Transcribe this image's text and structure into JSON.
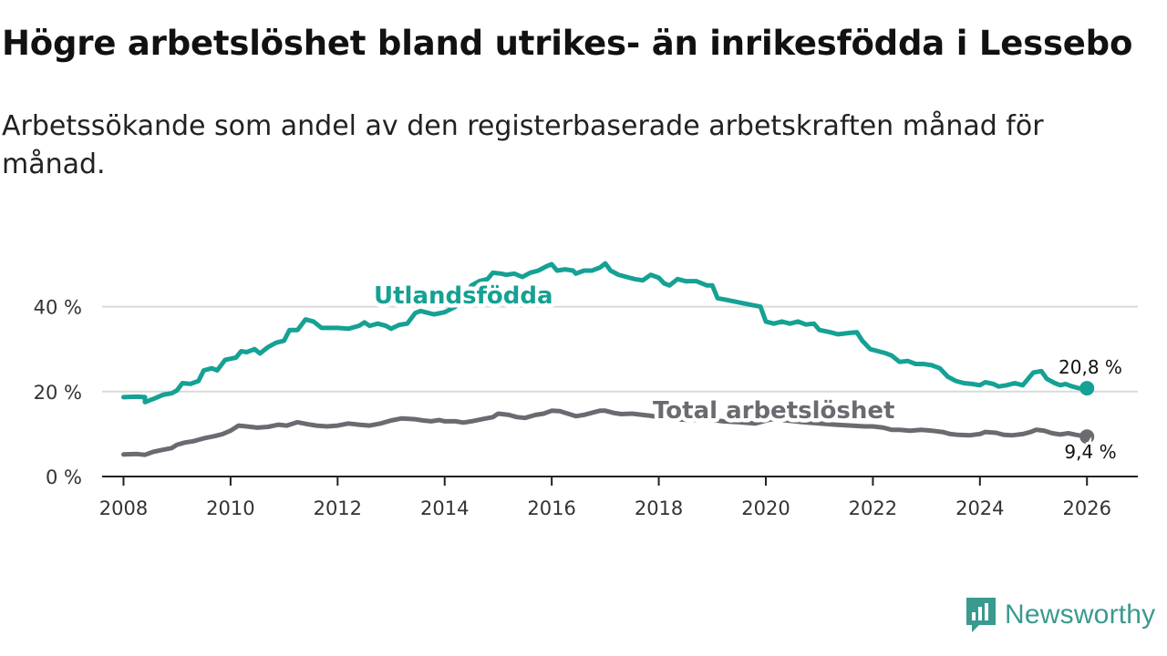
{
  "title": "Högre arbetslöshet bland utrikes- än inrikesfödda i Lessebo",
  "subtitle": "Arbetssökande som andel av den registerbaserade arbetskraften månad för månad.",
  "brand": {
    "name": "Newsworthy",
    "color": "#3a9a8f"
  },
  "chart_data": {
    "type": "line",
    "title": "Högre arbetslöshet bland utrikes- än inrikesfödda i Lessebo",
    "subtitle": "Arbetssökande som andel av den registerbaserade arbetskraften månad för månad.",
    "xlabel": "",
    "ylabel": "",
    "xlim": [
      2007.6,
      2026.95
    ],
    "ylim": [
      0,
      50
    ],
    "x_ticks": [
      {
        "value": 2008,
        "label": "2008"
      },
      {
        "value": 2010,
        "label": "2010"
      },
      {
        "value": 2012,
        "label": "2012"
      },
      {
        "value": 2014,
        "label": "2014"
      },
      {
        "value": 2016,
        "label": "2016"
      },
      {
        "value": 2018,
        "label": "2018"
      },
      {
        "value": 2020,
        "label": "2020"
      },
      {
        "value": 2022,
        "label": "2022"
      },
      {
        "value": 2024,
        "label": "2024"
      },
      {
        "value": 2026,
        "label": "2026"
      }
    ],
    "y_ticks": [
      {
        "value": 0,
        "label": "0 %"
      },
      {
        "value": 20,
        "label": "20 %"
      },
      {
        "value": 40,
        "label": "40 %"
      }
    ],
    "grid": true,
    "series": [
      {
        "name": "Utlandsfödda",
        "color": "#15a194",
        "end_label": "20,8 %",
        "points": [
          [
            2008.0,
            18.7
          ],
          [
            2008.25,
            18.8
          ],
          [
            2008.4,
            18.7
          ],
          [
            2008.4,
            17.5
          ],
          [
            2008.6,
            18.5
          ],
          [
            2008.75,
            19.3
          ],
          [
            2008.9,
            19.6
          ],
          [
            2009.0,
            20.3
          ],
          [
            2009.1,
            22.0
          ],
          [
            2009.25,
            21.8
          ],
          [
            2009.4,
            22.5
          ],
          [
            2009.5,
            25.0
          ],
          [
            2009.65,
            25.5
          ],
          [
            2009.75,
            25.0
          ],
          [
            2009.9,
            27.5
          ],
          [
            2010.1,
            28.0
          ],
          [
            2010.2,
            29.5
          ],
          [
            2010.3,
            29.3
          ],
          [
            2010.45,
            30.0
          ],
          [
            2010.55,
            29.0
          ],
          [
            2010.7,
            30.5
          ],
          [
            2010.85,
            31.5
          ],
          [
            2011.0,
            32.0
          ],
          [
            2011.1,
            34.5
          ],
          [
            2011.25,
            34.5
          ],
          [
            2011.4,
            37.0
          ],
          [
            2011.55,
            36.5
          ],
          [
            2011.7,
            35.0
          ],
          [
            2011.9,
            35.0
          ],
          [
            2012.0,
            35.0
          ],
          [
            2012.2,
            34.8
          ],
          [
            2012.4,
            35.5
          ],
          [
            2012.5,
            36.3
          ],
          [
            2012.6,
            35.5
          ],
          [
            2012.75,
            36.0
          ],
          [
            2012.9,
            35.5
          ],
          [
            2013.0,
            34.8
          ],
          [
            2013.15,
            35.7
          ],
          [
            2013.3,
            36.0
          ],
          [
            2013.45,
            38.5
          ],
          [
            2013.55,
            39.0
          ],
          [
            2013.7,
            38.5
          ],
          [
            2013.8,
            38.2
          ],
          [
            2014.0,
            38.7
          ],
          [
            2014.2,
            40.0
          ],
          [
            2014.35,
            42.0
          ],
          [
            2014.5,
            45.0
          ],
          [
            2014.65,
            46.0
          ],
          [
            2014.8,
            46.5
          ],
          [
            2014.9,
            48.0
          ],
          [
            2015.05,
            47.8
          ],
          [
            2015.15,
            47.5
          ],
          [
            2015.3,
            47.8
          ],
          [
            2015.45,
            47.0
          ],
          [
            2015.6,
            48.0
          ],
          [
            2015.75,
            48.5
          ],
          [
            2015.9,
            49.5
          ],
          [
            2016.0,
            50.0
          ],
          [
            2016.1,
            48.5
          ],
          [
            2016.25,
            48.8
          ],
          [
            2016.4,
            48.5
          ],
          [
            2016.45,
            47.8
          ],
          [
            2016.6,
            48.5
          ],
          [
            2016.75,
            48.5
          ],
          [
            2016.9,
            49.2
          ],
          [
            2017.0,
            50.2
          ],
          [
            2017.1,
            48.5
          ],
          [
            2017.25,
            47.5
          ],
          [
            2017.4,
            47.0
          ],
          [
            2017.55,
            46.5
          ],
          [
            2017.7,
            46.2
          ],
          [
            2017.85,
            47.5
          ],
          [
            2018.0,
            46.8
          ],
          [
            2018.1,
            45.5
          ],
          [
            2018.2,
            45.0
          ],
          [
            2018.35,
            46.5
          ],
          [
            2018.5,
            46.0
          ],
          [
            2018.7,
            46.0
          ],
          [
            2018.9,
            45.0
          ],
          [
            2019.0,
            45.0
          ],
          [
            2019.1,
            42.0
          ],
          [
            2019.3,
            41.5
          ],
          [
            2019.5,
            41.0
          ],
          [
            2019.7,
            40.5
          ],
          [
            2019.9,
            40.0
          ],
          [
            2020.0,
            36.5
          ],
          [
            2020.15,
            36.0
          ],
          [
            2020.3,
            36.5
          ],
          [
            2020.45,
            36.0
          ],
          [
            2020.6,
            36.5
          ],
          [
            2020.75,
            35.8
          ],
          [
            2020.9,
            36.0
          ],
          [
            2021.0,
            34.5
          ],
          [
            2021.2,
            34.0
          ],
          [
            2021.35,
            33.5
          ],
          [
            2021.55,
            33.8
          ],
          [
            2021.7,
            34.0
          ],
          [
            2021.8,
            32.0
          ],
          [
            2021.95,
            30.0
          ],
          [
            2022.1,
            29.5
          ],
          [
            2022.25,
            29.0
          ],
          [
            2022.35,
            28.5
          ],
          [
            2022.5,
            27.0
          ],
          [
            2022.65,
            27.2
          ],
          [
            2022.8,
            26.5
          ],
          [
            2022.95,
            26.5
          ],
          [
            2023.1,
            26.2
          ],
          [
            2023.25,
            25.5
          ],
          [
            2023.4,
            23.5
          ],
          [
            2023.55,
            22.5
          ],
          [
            2023.7,
            22.0
          ],
          [
            2023.85,
            21.8
          ],
          [
            2024.0,
            21.5
          ],
          [
            2024.1,
            22.2
          ],
          [
            2024.25,
            21.8
          ],
          [
            2024.35,
            21.2
          ],
          [
            2024.5,
            21.5
          ],
          [
            2024.65,
            22.0
          ],
          [
            2024.8,
            21.5
          ],
          [
            2024.9,
            23.0
          ],
          [
            2025.0,
            24.5
          ],
          [
            2025.15,
            24.8
          ],
          [
            2025.25,
            23.0
          ],
          [
            2025.4,
            22.0
          ],
          [
            2025.5,
            21.5
          ],
          [
            2025.6,
            21.8
          ],
          [
            2025.7,
            21.3
          ],
          [
            2025.85,
            20.8
          ],
          [
            2026.0,
            20.8
          ]
        ]
      },
      {
        "name": "Total arbetslöshet",
        "color": "#6b6a70",
        "end_label": "9,4 %",
        "points": [
          [
            2008.0,
            5.2
          ],
          [
            2008.25,
            5.3
          ],
          [
            2008.4,
            5.1
          ],
          [
            2008.55,
            5.8
          ],
          [
            2008.7,
            6.2
          ],
          [
            2008.9,
            6.7
          ],
          [
            2009.0,
            7.5
          ],
          [
            2009.15,
            8.0
          ],
          [
            2009.3,
            8.3
          ],
          [
            2009.5,
            9.0
          ],
          [
            2009.7,
            9.5
          ],
          [
            2009.85,
            10.0
          ],
          [
            2010.0,
            10.8
          ],
          [
            2010.15,
            12.0
          ],
          [
            2010.3,
            11.8
          ],
          [
            2010.5,
            11.5
          ],
          [
            2010.7,
            11.7
          ],
          [
            2010.9,
            12.2
          ],
          [
            2011.05,
            12.0
          ],
          [
            2011.25,
            12.8
          ],
          [
            2011.45,
            12.3
          ],
          [
            2011.6,
            12.0
          ],
          [
            2011.8,
            11.8
          ],
          [
            2012.0,
            12.0
          ],
          [
            2012.2,
            12.5
          ],
          [
            2012.4,
            12.2
          ],
          [
            2012.6,
            12.0
          ],
          [
            2012.8,
            12.5
          ],
          [
            2013.0,
            13.2
          ],
          [
            2013.2,
            13.7
          ],
          [
            2013.45,
            13.5
          ],
          [
            2013.6,
            13.2
          ],
          [
            2013.75,
            13.0
          ],
          [
            2013.9,
            13.3
          ],
          [
            2014.0,
            13.0
          ],
          [
            2014.2,
            13.0
          ],
          [
            2014.35,
            12.7
          ],
          [
            2014.5,
            13.0
          ],
          [
            2014.7,
            13.5
          ],
          [
            2014.9,
            14.0
          ],
          [
            2015.0,
            14.8
          ],
          [
            2015.2,
            14.5
          ],
          [
            2015.35,
            14.0
          ],
          [
            2015.5,
            13.8
          ],
          [
            2015.7,
            14.5
          ],
          [
            2015.85,
            14.8
          ],
          [
            2016.0,
            15.5
          ],
          [
            2016.15,
            15.4
          ],
          [
            2016.3,
            14.8
          ],
          [
            2016.45,
            14.2
          ],
          [
            2016.6,
            14.5
          ],
          [
            2016.75,
            15.0
          ],
          [
            2016.9,
            15.5
          ],
          [
            2017.0,
            15.5
          ],
          [
            2017.15,
            15.0
          ],
          [
            2017.3,
            14.7
          ],
          [
            2017.5,
            14.8
          ],
          [
            2017.7,
            14.5
          ],
          [
            2017.85,
            14.3
          ],
          [
            2018.0,
            14.0
          ],
          [
            2018.3,
            13.5
          ],
          [
            2018.6,
            13.3
          ],
          [
            2018.9,
            13.5
          ],
          [
            2019.2,
            13.0
          ],
          [
            2019.5,
            12.8
          ],
          [
            2019.8,
            12.5
          ],
          [
            2020.1,
            13.5
          ],
          [
            2020.4,
            13.2
          ],
          [
            2020.7,
            12.8
          ],
          [
            2021.0,
            12.5
          ],
          [
            2021.3,
            12.2
          ],
          [
            2021.6,
            12.0
          ],
          [
            2021.85,
            11.8
          ],
          [
            2022.0,
            11.8
          ],
          [
            2022.2,
            11.5
          ],
          [
            2022.35,
            11.0
          ],
          [
            2022.5,
            11.0
          ],
          [
            2022.7,
            10.8
          ],
          [
            2022.9,
            11.0
          ],
          [
            2023.1,
            10.8
          ],
          [
            2023.3,
            10.5
          ],
          [
            2023.45,
            10.0
          ],
          [
            2023.6,
            9.8
          ],
          [
            2023.8,
            9.7
          ],
          [
            2024.0,
            10.0
          ],
          [
            2024.1,
            10.5
          ],
          [
            2024.3,
            10.3
          ],
          [
            2024.45,
            9.8
          ],
          [
            2024.6,
            9.7
          ],
          [
            2024.8,
            10.0
          ],
          [
            2024.95,
            10.5
          ],
          [
            2025.05,
            11.0
          ],
          [
            2025.2,
            10.8
          ],
          [
            2025.35,
            10.2
          ],
          [
            2025.5,
            9.9
          ],
          [
            2025.65,
            10.2
          ],
          [
            2025.8,
            9.8
          ],
          [
            2026.0,
            9.4
          ]
        ]
      }
    ]
  }
}
